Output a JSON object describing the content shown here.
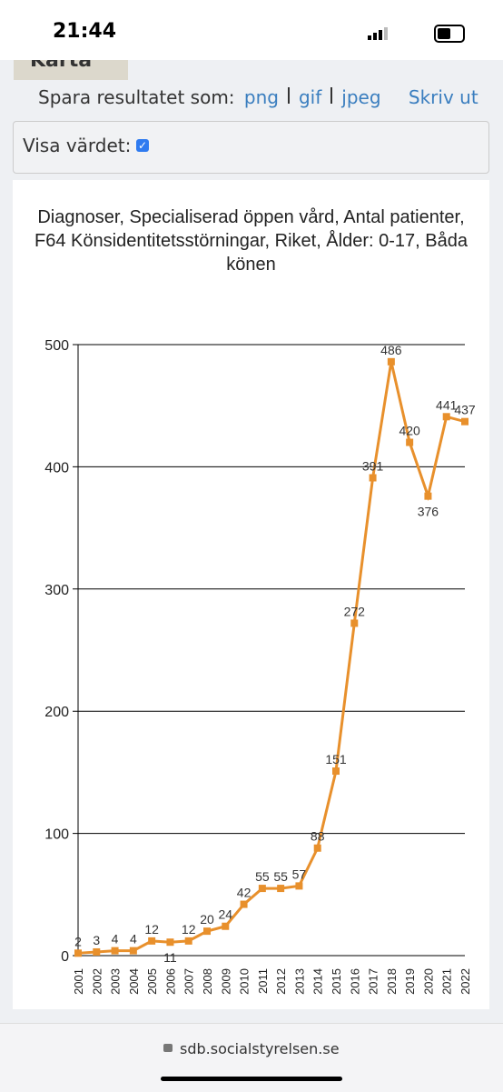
{
  "status_bar": {
    "time": "21:44"
  },
  "tab": {
    "label": "Karta"
  },
  "save_row": {
    "label": "Spara resultatet som:",
    "links": [
      "png",
      "gif",
      "jpeg"
    ],
    "print": "Skriv ut"
  },
  "show_value": {
    "label": "Visa värdet:"
  },
  "chart_data": {
    "type": "line",
    "title": "Diagnoser, Specialiserad öppen vård, Antal patienter, F64 Könsidentitetsstörningar, Riket, Ålder: 0-17, Båda könen",
    "categories": [
      "2001",
      "2002",
      "2003",
      "2004",
      "2005",
      "2006",
      "2007",
      "2008",
      "2009",
      "2010",
      "2011",
      "2012",
      "2013",
      "2014",
      "2015",
      "2016",
      "2017",
      "2018",
      "2019",
      "2020",
      "2021",
      "2022"
    ],
    "values": [
      2,
      3,
      4,
      4,
      12,
      11,
      12,
      20,
      24,
      42,
      55,
      55,
      57,
      88,
      151,
      272,
      391,
      486,
      420,
      376,
      441,
      437
    ],
    "color": "#e8902c",
    "ylim": [
      0,
      500
    ],
    "yticks": [
      0,
      100,
      200,
      300,
      400,
      500
    ],
    "grid": true
  },
  "url_bar": {
    "url": "sdb.socialstyrelsen.se"
  }
}
